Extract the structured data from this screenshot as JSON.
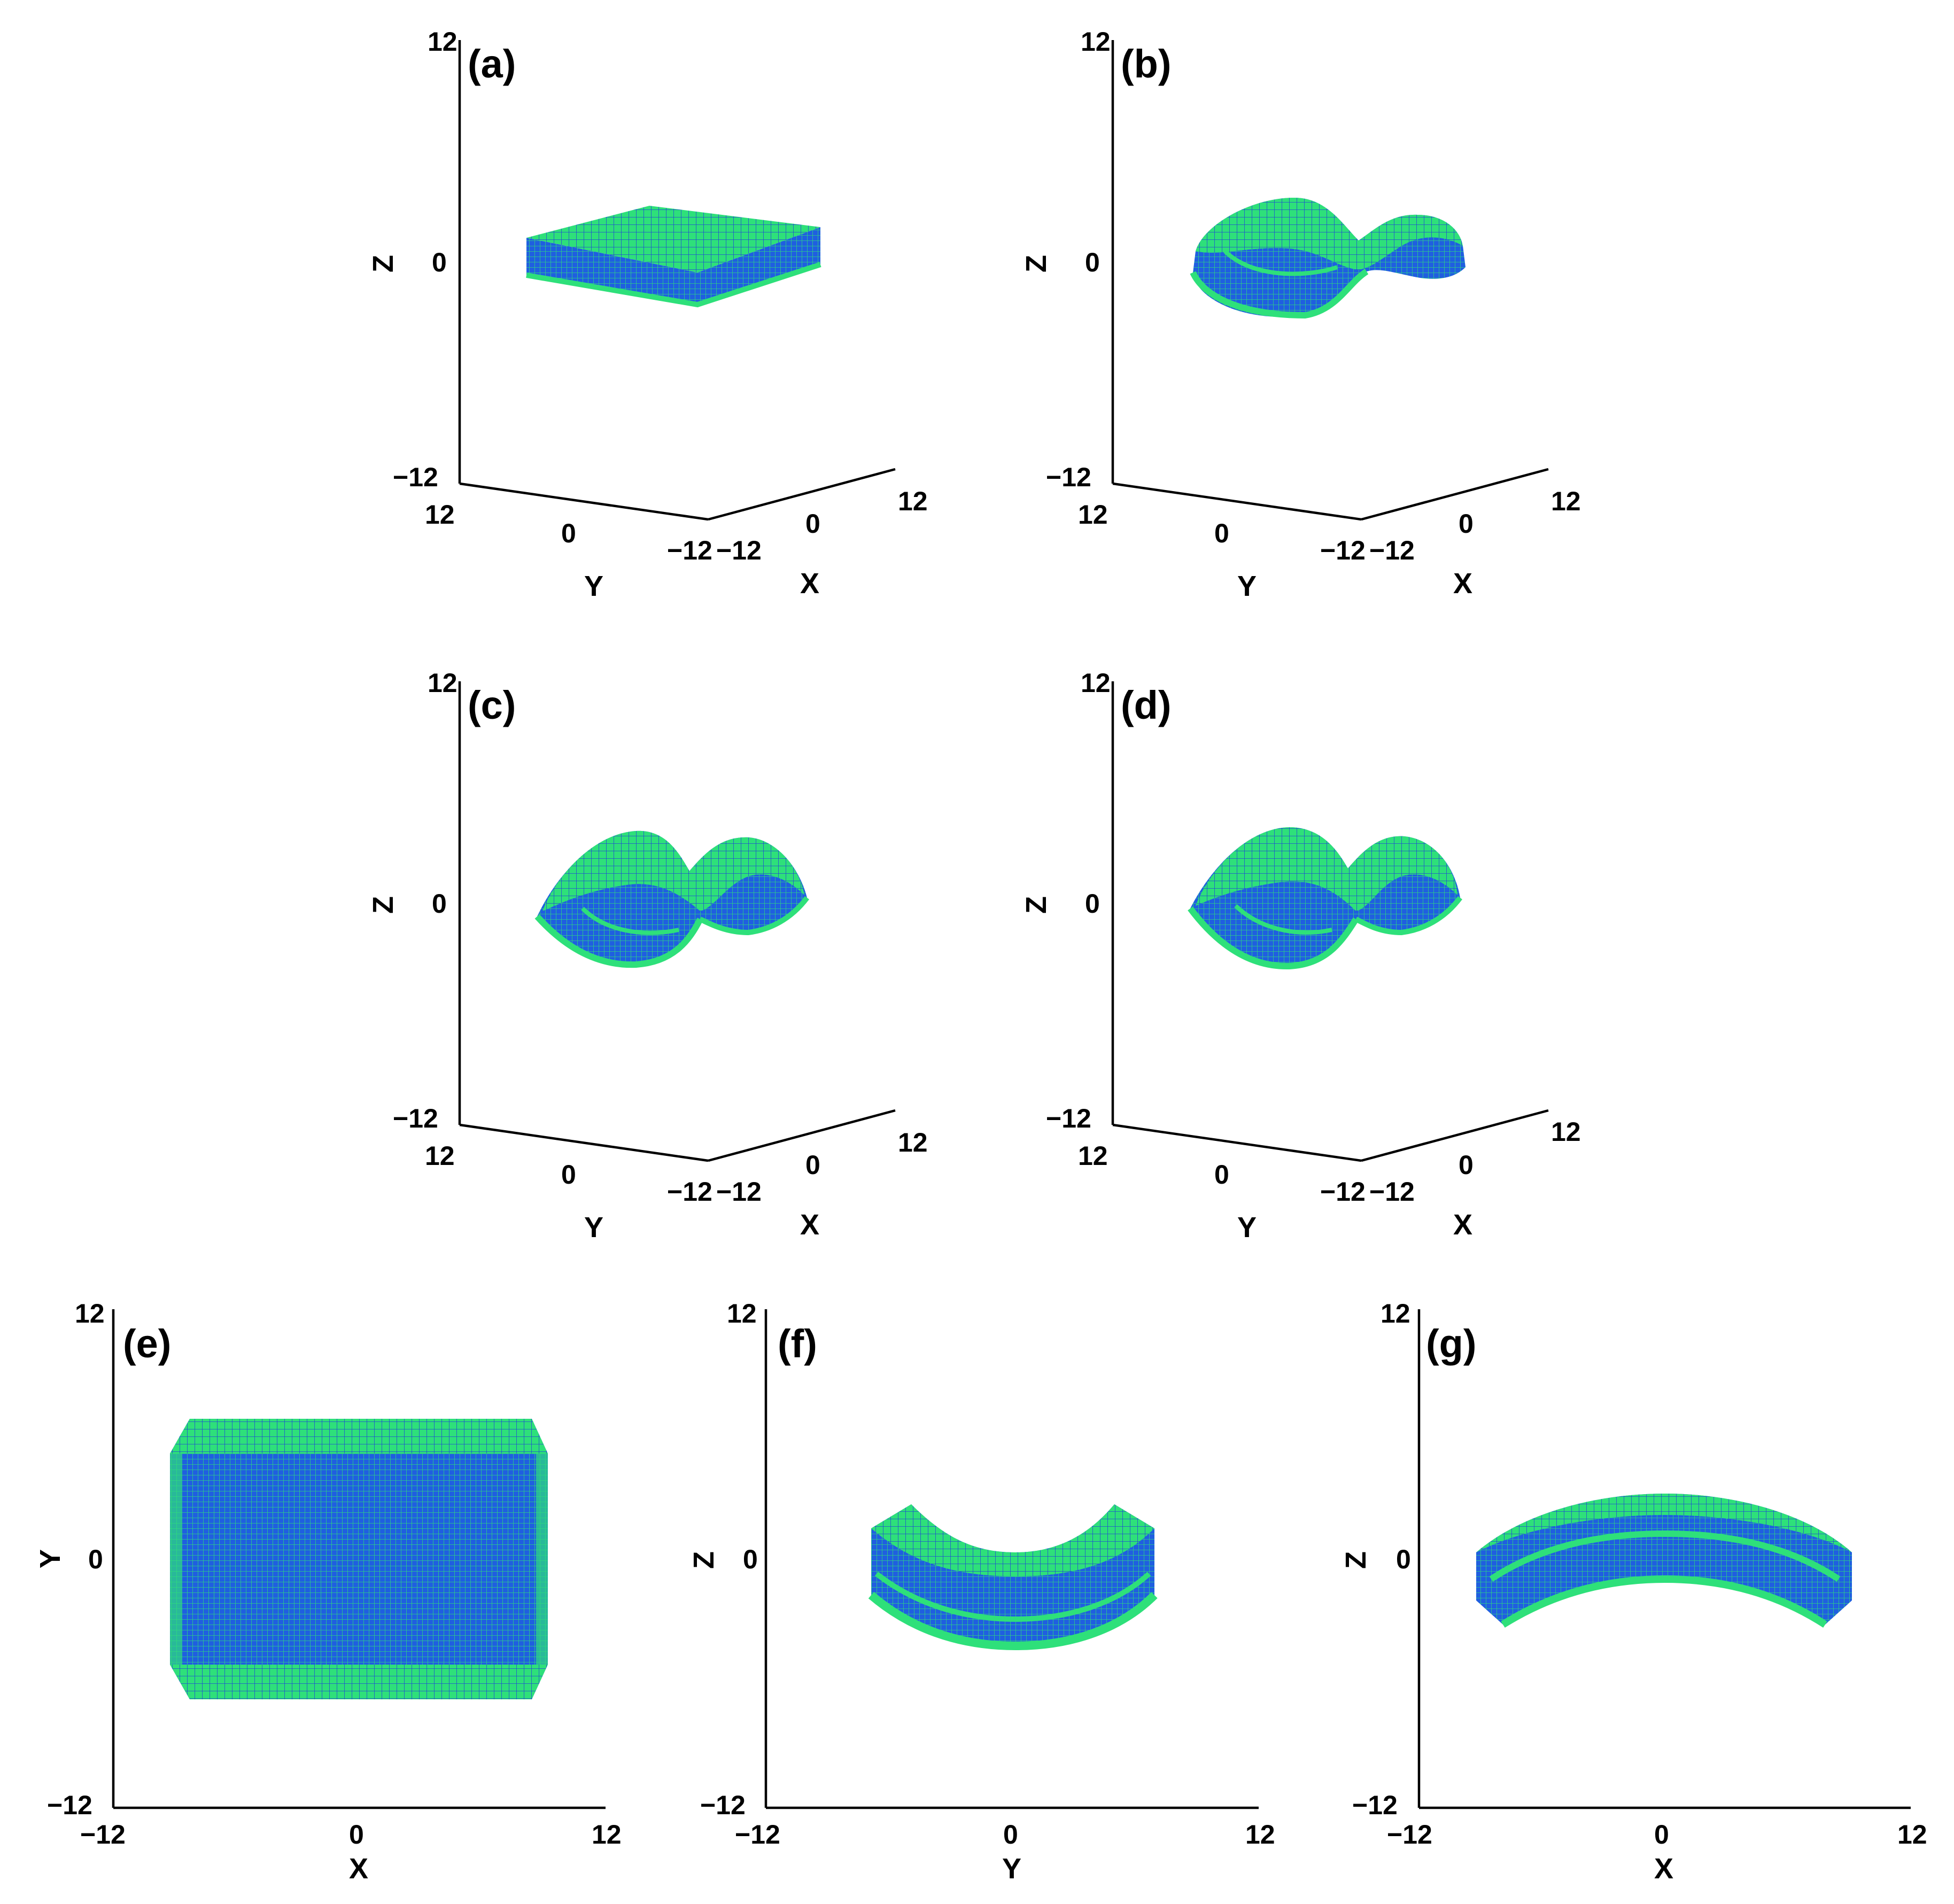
{
  "colors": {
    "mesh_fill": "#2ee07a",
    "mesh_line": "#1a2fe6",
    "axis": "#000000"
  },
  "chart_data": [
    {
      "panel": "(a)",
      "type": "3d-surface",
      "xlabel": "X",
      "ylabel": "Y",
      "zlabel": "Z",
      "xlim": [
        -12,
        12
      ],
      "ylim": [
        -12,
        12
      ],
      "zlim": [
        -12,
        12
      ],
      "x_ticks": [
        "-12",
        "0",
        "12"
      ],
      "y_ticks": [
        "12",
        "0",
        "-12"
      ],
      "z_ticks": [
        "12",
        "0",
        "-12"
      ],
      "shape": "flat-plate"
    },
    {
      "panel": "(b)",
      "type": "3d-surface",
      "xlabel": "X",
      "ylabel": "Y",
      "zlabel": "Z",
      "xlim": [
        -12,
        12
      ],
      "ylim": [
        -12,
        12
      ],
      "zlim": [
        -12,
        12
      ],
      "x_ticks": [
        "-12",
        "0",
        "12"
      ],
      "y_ticks": [
        "12",
        "0",
        "-12"
      ],
      "z_ticks": [
        "12",
        "0",
        "-12"
      ],
      "shape": "bent-dumbbell"
    },
    {
      "panel": "(c)",
      "type": "3d-surface",
      "xlabel": "X",
      "ylabel": "Y",
      "zlabel": "Z",
      "xlim": [
        -12,
        12
      ],
      "ylim": [
        -12,
        12
      ],
      "zlim": [
        -12,
        12
      ],
      "x_ticks": [
        "-12",
        "0",
        "12"
      ],
      "y_ticks": [
        "12",
        "0",
        "-12"
      ],
      "z_ticks": [
        "12",
        "0",
        "-12"
      ],
      "shape": "double-dome"
    },
    {
      "panel": "(d)",
      "type": "3d-surface",
      "xlabel": "X",
      "ylabel": "Y",
      "zlabel": "Z",
      "xlim": [
        -12,
        12
      ],
      "ylim": [
        -12,
        12
      ],
      "zlim": [
        -12,
        12
      ],
      "x_ticks": [
        "-12",
        "0",
        "12"
      ],
      "y_ticks": [
        "12",
        "0",
        "-12"
      ],
      "z_ticks": [
        "12",
        "0",
        "-12"
      ],
      "shape": "double-dome"
    },
    {
      "panel": "(e)",
      "type": "projection",
      "xlabel": "X",
      "ylabel": "Y",
      "xlim": [
        -12,
        12
      ],
      "ylim": [
        -12,
        12
      ],
      "x_ticks": [
        "-12",
        "0",
        "12"
      ],
      "y_ticks": [
        "12",
        "0",
        "-12"
      ],
      "shape": "rectangle",
      "extent": {
        "x": [
          -9,
          9
        ],
        "y": [
          -7,
          7
        ]
      }
    },
    {
      "panel": "(f)",
      "type": "projection",
      "xlabel": "Y",
      "ylabel": "Z",
      "xlim": [
        -12,
        12
      ],
      "ylim": [
        -12,
        12
      ],
      "x_ticks": [
        "-12",
        "0",
        "12"
      ],
      "y_ticks": [
        "12",
        "0",
        "-12"
      ],
      "shape": "arc-up"
    },
    {
      "panel": "(g)",
      "type": "projection",
      "xlabel": "X",
      "ylabel": "Z",
      "xlim": [
        -12,
        12
      ],
      "ylim": [
        -12,
        12
      ],
      "x_ticks": [
        "-12",
        "0",
        "12"
      ],
      "y_ticks": [
        "12",
        "0",
        "-12"
      ],
      "shape": "arc-down"
    }
  ]
}
